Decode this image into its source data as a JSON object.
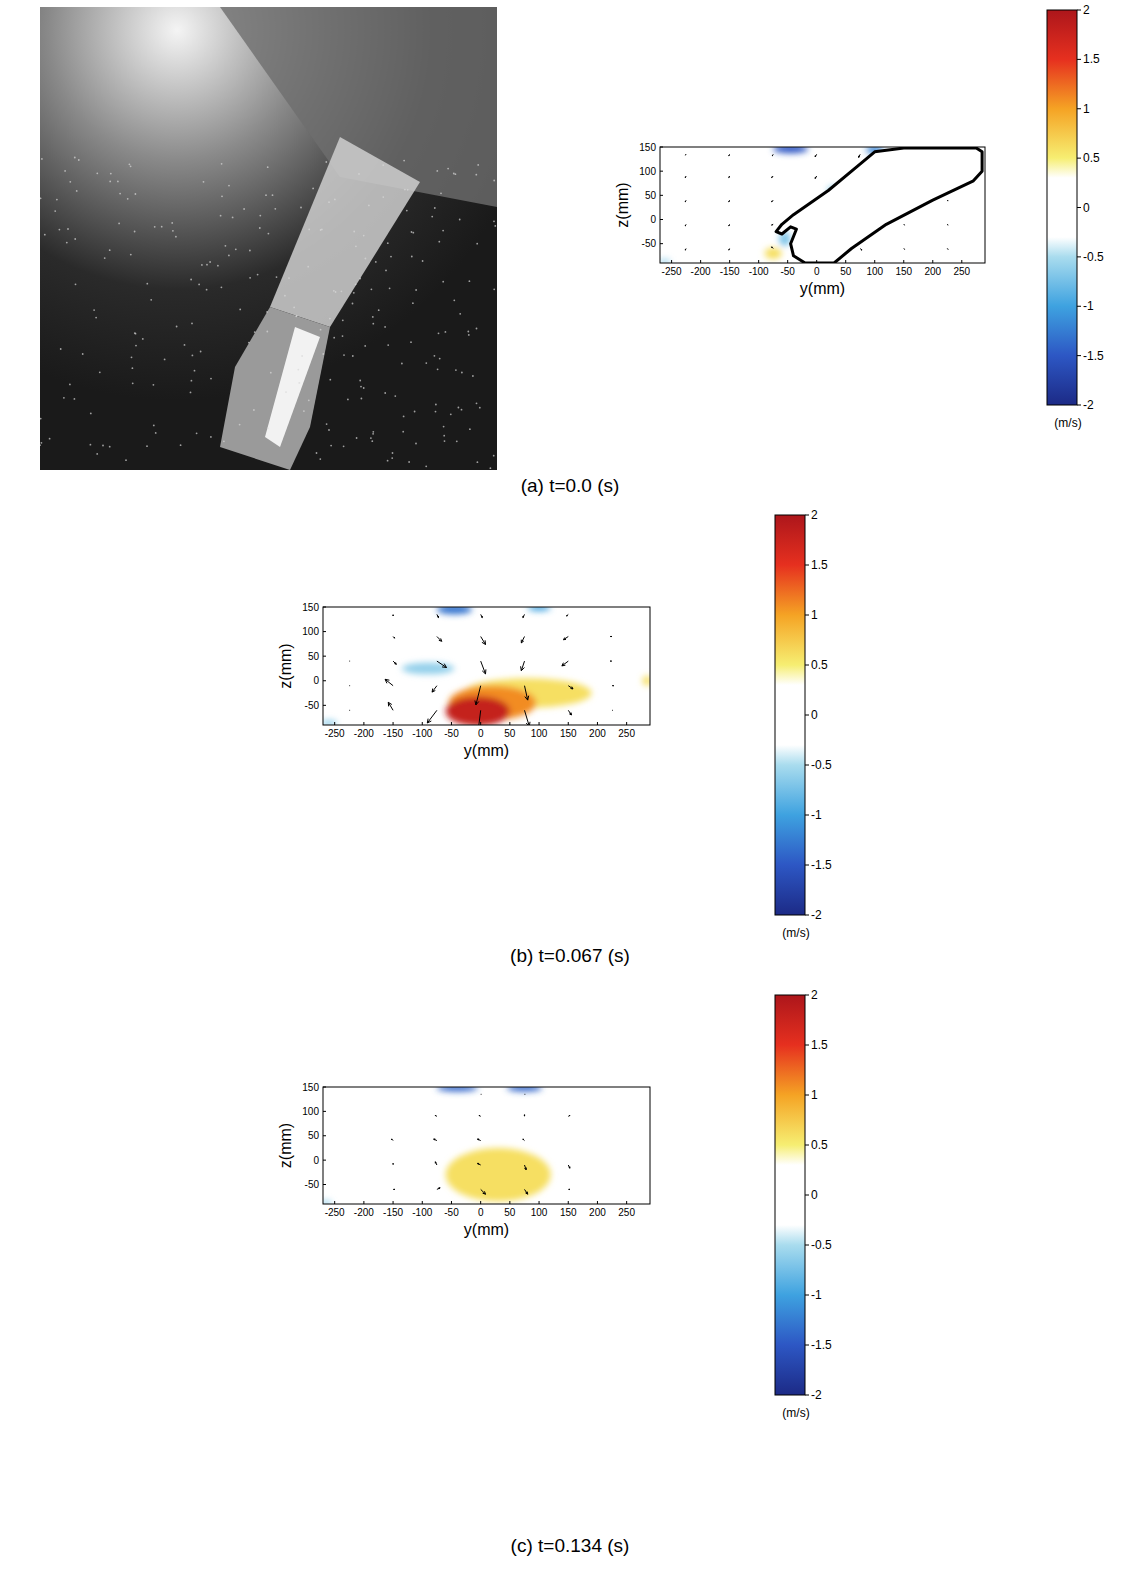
{
  "chart_data": [
    {
      "type": "vector_field",
      "title": "(a) t=0.0 (s)",
      "x_label": "y(mm)",
      "y_label": "z(mm)",
      "xlim": [
        -270,
        290
      ],
      "ylim": [
        -90,
        150
      ],
      "xticks": [
        -250,
        -200,
        -150,
        -100,
        -50,
        0,
        50,
        100,
        150,
        200,
        250
      ],
      "yticks": [
        -50,
        0,
        50,
        100,
        150
      ],
      "grid": false,
      "vectors": {
        "y": [
          -225,
          -150,
          -75,
          0,
          75,
          150,
          225
        ],
        "z": [
          -60,
          -10,
          40,
          90,
          135
        ],
        "u": [
          [
            -0.05,
            -0.05,
            -0.1,
            null,
            0.1,
            0.05,
            0.05
          ],
          [
            -0.05,
            -0.05,
            -0.1,
            null,
            null,
            0.05,
            0.05
          ],
          [
            -0.05,
            -0.05,
            -0.1,
            null,
            null,
            null,
            0.05
          ],
          [
            -0.05,
            -0.05,
            -0.1,
            -0.1,
            null,
            null,
            null
          ],
          [
            -0.05,
            -0.05,
            -0.05,
            -0.1,
            -0.1,
            null,
            null
          ]
        ],
        "w": [
          [
            -0.1,
            -0.1,
            0.1,
            null,
            -0.1,
            -0.05,
            -0.05
          ],
          [
            -0.1,
            -0.1,
            -0.05,
            null,
            null,
            -0.05,
            -0.05
          ],
          [
            -0.1,
            -0.1,
            -0.1,
            null,
            null,
            null,
            -0.05
          ],
          [
            -0.1,
            -0.1,
            -0.1,
            -0.15,
            null,
            null,
            null
          ],
          [
            -0.05,
            -0.1,
            -0.1,
            -0.15,
            -0.2,
            null,
            null
          ]
        ]
      },
      "regions": [
        {
          "y": -75,
          "z": -70,
          "ry": 15,
          "rz": 12,
          "value": 0.6
        },
        {
          "y": -55,
          "z": -40,
          "ry": 10,
          "rz": 15,
          "value": -0.7
        },
        {
          "y": 30,
          "z": 60,
          "ry": 12,
          "rz": 10,
          "value": -0.6
        },
        {
          "y": -45,
          "z": 146,
          "ry": 30,
          "rz": 9,
          "value": -1.5
        },
        {
          "y": 100,
          "z": 144,
          "ry": 15,
          "rz": 8,
          "value": -1.2
        },
        {
          "y": -262,
          "z": -87,
          "ry": 10,
          "rz": 5,
          "value": -0.6
        }
      ],
      "hand_outline": {
        "y": [
          -20,
          30,
          60,
          120,
          200,
          270,
          285,
          285,
          275,
          150,
          100,
          70,
          20,
          -40,
          -60,
          -70,
          -60,
          -45,
          -35,
          -45,
          -40,
          -20
        ],
        "z": [
          -90,
          -90,
          -60,
          -10,
          40,
          80,
          100,
          140,
          148,
          148,
          140,
          110,
          60,
          10,
          -10,
          -25,
          -30,
          -15,
          -20,
          -50,
          -75,
          -90
        ]
      },
      "colorbar": {
        "range": [
          -2,
          2
        ],
        "ticks": [
          -2,
          -1.5,
          -1,
          -0.5,
          0,
          0.5,
          1,
          1.5,
          2
        ],
        "label": "(m/s)"
      }
    },
    {
      "type": "vector_field",
      "title": "(b) t=0.067 (s)",
      "x_label": "y(mm)",
      "y_label": "z(mm)",
      "xlim": [
        -270,
        290
      ],
      "ylim": [
        -90,
        150
      ],
      "xticks": [
        -250,
        -200,
        -150,
        -100,
        -50,
        0,
        50,
        100,
        150,
        200,
        250
      ],
      "yticks": [
        -50,
        0,
        50,
        100,
        150
      ],
      "grid": false,
      "vectors": {
        "y": [
          -225,
          -150,
          -75,
          0,
          75,
          150,
          225
        ],
        "z": [
          -60,
          -10,
          40,
          90,
          135
        ],
        "u": [
          [
            0.05,
            -0.3,
            -0.6,
            -0.2,
            0.3,
            0.2,
            0.05
          ],
          [
            0.05,
            -0.5,
            -0.3,
            -0.3,
            0.2,
            0.3,
            0.1
          ],
          [
            0.05,
            0.2,
            0.6,
            0.3,
            -0.2,
            -0.4,
            -0.1
          ],
          [
            0,
            0.1,
            0.3,
            0.3,
            -0.2,
            -0.3,
            -0.1
          ],
          [
            0,
            0,
            0.1,
            0.1,
            -0.1,
            -0.1,
            0
          ]
        ],
        "w": [
          [
            0,
            0.5,
            -0.8,
            -1.6,
            -1.0,
            -0.3,
            0
          ],
          [
            0,
            0.4,
            -0.4,
            -1.2,
            -0.9,
            -0.2,
            0
          ],
          [
            0,
            -0.2,
            -0.4,
            -0.8,
            -0.6,
            -0.3,
            0
          ],
          [
            0,
            -0.1,
            -0.3,
            -0.5,
            -0.4,
            -0.2,
            0
          ],
          [
            0,
            -0.1,
            -0.2,
            -0.2,
            -0.2,
            -0.1,
            0
          ]
        ]
      },
      "regions": [
        {
          "y": 80,
          "z": -25,
          "ry": 110,
          "rz": 30,
          "value": 0.6
        },
        {
          "y": 20,
          "z": -45,
          "ry": 75,
          "rz": 35,
          "value": 1.1
        },
        {
          "y": -5,
          "z": -62,
          "ry": 55,
          "rz": 30,
          "value": 1.8
        },
        {
          "y": 285,
          "z": 0,
          "ry": 8,
          "rz": 10,
          "value": 0.6
        },
        {
          "y": -90,
          "z": 25,
          "ry": 45,
          "rz": 12,
          "value": -0.6
        },
        {
          "y": -45,
          "z": 145,
          "ry": 30,
          "rz": 10,
          "value": -1.3
        },
        {
          "y": 100,
          "z": 148,
          "ry": 20,
          "rz": 6,
          "value": -1.0
        },
        {
          "y": -260,
          "z": -86,
          "ry": 15,
          "rz": 6,
          "value": -0.6
        }
      ],
      "colorbar": {
        "range": [
          -2,
          2
        ],
        "ticks": [
          -2,
          -1.5,
          -1,
          -0.5,
          0,
          0.5,
          1,
          1.5,
          2
        ],
        "label": "(m/s)"
      }
    },
    {
      "type": "vector_field",
      "title": "(c) t=0.134 (s)",
      "x_label": "y(mm)",
      "y_label": "z(mm)",
      "xlim": [
        -270,
        290
      ],
      "ylim": [
        -90,
        150
      ],
      "xticks": [
        -250,
        -200,
        -150,
        -100,
        -50,
        0,
        50,
        100,
        150,
        200,
        250
      ],
      "yticks": [
        -50,
        0,
        50,
        100,
        150
      ],
      "grid": false,
      "vectors": {
        "y": [
          -225,
          -150,
          -75,
          0,
          75,
          150,
          225
        ],
        "z": [
          -60,
          -10,
          40,
          90,
          135
        ],
        "u": [
          [
            0,
            0.1,
            0.2,
            0.3,
            0.2,
            0.1,
            0
          ],
          [
            0,
            0,
            -0.1,
            -0.2,
            0.1,
            0.1,
            0
          ],
          [
            0,
            -0.1,
            -0.2,
            -0.2,
            -0.1,
            0,
            0
          ],
          [
            0,
            0,
            -0.1,
            -0.1,
            0,
            0.1,
            0
          ],
          [
            0,
            0,
            0,
            0.05,
            0.05,
            0,
            0
          ]
        ],
        "w": [
          [
            0,
            0,
            0.1,
            -0.3,
            -0.3,
            0,
            0
          ],
          [
            0,
            0.1,
            0.2,
            0.1,
            -0.3,
            -0.2,
            0
          ],
          [
            0,
            0.1,
            0.1,
            0.1,
            0.1,
            0,
            0
          ],
          [
            0,
            0,
            0.05,
            0.05,
            0.1,
            0.05,
            0
          ],
          [
            0,
            0,
            0,
            0,
            0,
            0,
            0
          ]
        ]
      },
      "regions": [
        {
          "y": 30,
          "z": -30,
          "ry": 90,
          "rz": 55,
          "value": 0.6
        },
        {
          "y": -40,
          "z": 148,
          "ry": 35,
          "rz": 7,
          "value": -1.4
        },
        {
          "y": 75,
          "z": 148,
          "ry": 30,
          "rz": 7,
          "value": -1.4
        },
        {
          "y": -265,
          "z": -88,
          "ry": 10,
          "rz": 5,
          "value": -0.6
        }
      ],
      "colorbar": {
        "range": [
          -2,
          2
        ],
        "ticks": [
          -2,
          -1.5,
          -1,
          -0.5,
          0,
          0.5,
          1,
          1.5,
          2
        ],
        "label": "(m/s)"
      }
    }
  ]
}
